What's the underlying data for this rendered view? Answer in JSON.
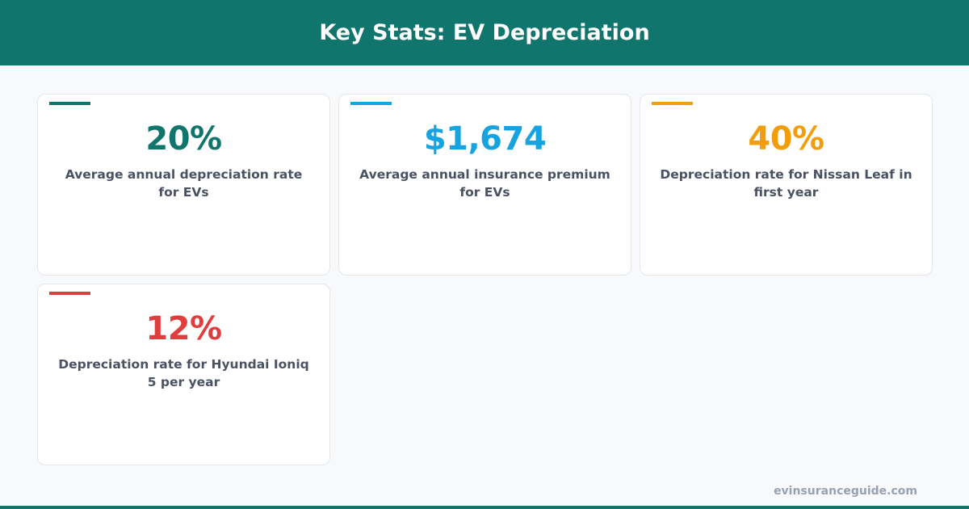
{
  "header": {
    "title": "Key Stats: EV Depreciation"
  },
  "stats": [
    {
      "value": "20%",
      "label": "Average annual depreciation rate for EVs",
      "color": "#10756c"
    },
    {
      "value": "$1,674",
      "label": "Average annual insurance premium for EVs",
      "color": "#16a3e0"
    },
    {
      "value": "40%",
      "label": "Depreciation rate for Nissan Leaf in first year",
      "color": "#f29d0e"
    },
    {
      "value": "12%",
      "label": "Depreciation rate for Hyundai Ioniq 5 per year",
      "color": "#e03e3e"
    }
  ],
  "footer": {
    "site": "evinsuranceguide.com"
  }
}
